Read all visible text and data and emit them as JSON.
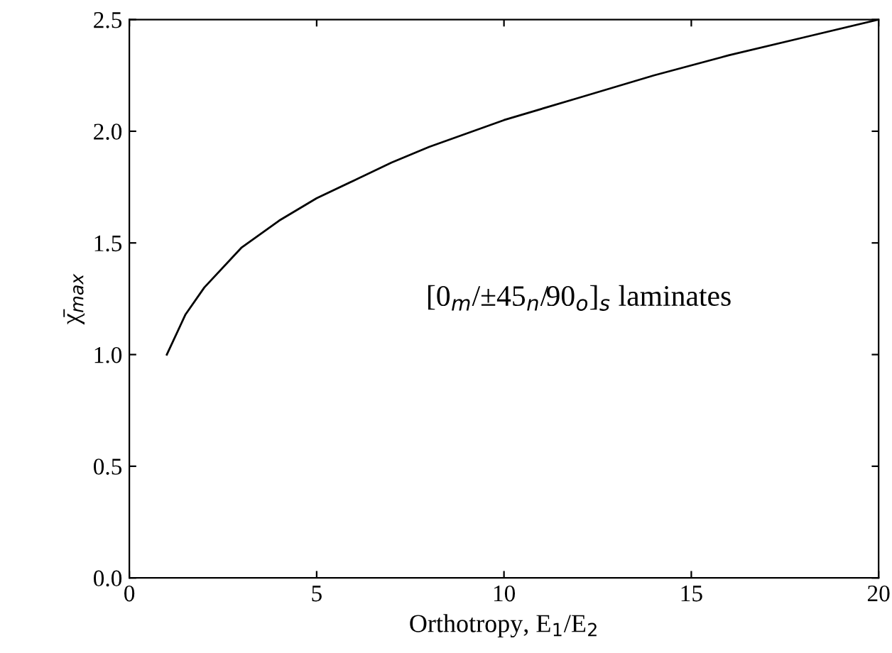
{
  "chart_data": {
    "type": "line",
    "xlabel": "Orthotropy, E$_{1}$/E$_{2}$",
    "ylabel": "χ̄$_{max}$",
    "x": [
      1,
      1.5,
      2,
      3,
      4,
      5,
      6,
      7,
      8,
      10,
      12,
      14,
      16,
      18,
      20
    ],
    "series": [
      {
        "color": "#000000",
        "values": [
          1.0,
          1.18,
          1.3,
          1.48,
          1.6,
          1.7,
          1.78,
          1.86,
          1.93,
          2.05,
          2.15,
          2.25,
          2.34,
          2.42,
          2.5
        ]
      }
    ],
    "annotations": [
      "[0$_{m}$/±45$_{n}$/90$_{o}$]$_{s}$ laminates"
    ],
    "xlim": [
      0,
      20
    ],
    "xticks": [
      0,
      5,
      10,
      15,
      20
    ],
    "ylim": [
      0,
      2.5
    ],
    "yticks": [
      {
        "value": 0,
        "label": "0.0"
      },
      {
        "value": 0.5,
        "label": "0.5"
      },
      {
        "value": 1,
        "label": "1.0"
      },
      {
        "value": 1.5,
        "label": "1.5"
      },
      {
        "value": 2,
        "label": "2.0"
      },
      {
        "value": 2.5,
        "label": "2.5"
      }
    ],
    "grid": false,
    "marker": "none",
    "line_style": "solid"
  }
}
